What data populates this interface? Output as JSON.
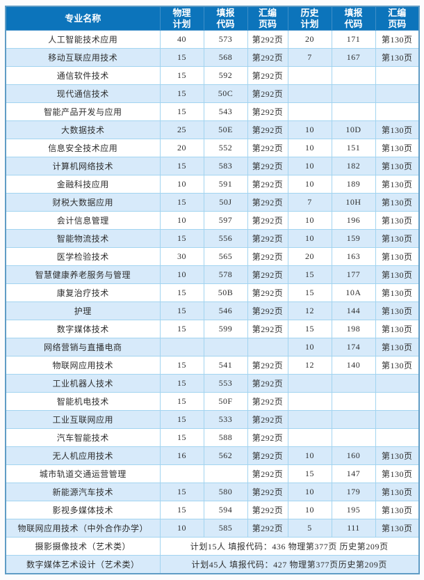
{
  "colors": {
    "header_bg": "#0c74bb",
    "header_text": "#ffffff",
    "header_border": "#3f8fc8",
    "row_alt": "#d7eafa",
    "cell_border": "#a2d4f0",
    "outer_border": "#5f9cc5",
    "text_color": "#2e2e2e"
  },
  "table": {
    "header": {
      "major": "专业名称",
      "cols": [
        {
          "l1": "物理",
          "l2": "计划"
        },
        {
          "l1": "填报",
          "l2": "代码"
        },
        {
          "l1": "汇编",
          "l2": "页码"
        },
        {
          "l1": "历史",
          "l2": "计划"
        },
        {
          "l1": "填报",
          "l2": "代码"
        },
        {
          "l1": "汇编",
          "l2": "页码"
        }
      ]
    },
    "rows": [
      {
        "major": "人工智能技术应用",
        "phy_plan": "40",
        "phy_code": "573",
        "phy_page": "第292页",
        "his_plan": "20",
        "his_code": "171",
        "his_page": "第130页"
      },
      {
        "major": "移动互联应用技术",
        "phy_plan": "15",
        "phy_code": "568",
        "phy_page": "第292页",
        "his_plan": "7",
        "his_code": "167",
        "his_page": "第130页"
      },
      {
        "major": "通信软件技术",
        "phy_plan": "15",
        "phy_code": "592",
        "phy_page": "第292页",
        "his_plan": "",
        "his_code": "",
        "his_page": ""
      },
      {
        "major": "现代通信技术",
        "phy_plan": "15",
        "phy_code": "50C",
        "phy_page": "第292页",
        "his_plan": "",
        "his_code": "",
        "his_page": ""
      },
      {
        "major": "智能产品开发与应用",
        "phy_plan": "15",
        "phy_code": "543",
        "phy_page": "第292页",
        "his_plan": "",
        "his_code": "",
        "his_page": ""
      },
      {
        "major": "大数据技术",
        "phy_plan": "25",
        "phy_code": "50E",
        "phy_page": "第292页",
        "his_plan": "10",
        "his_code": "10D",
        "his_page": "第130页"
      },
      {
        "major": "信息安全技术应用",
        "phy_plan": "20",
        "phy_code": "552",
        "phy_page": "第292页",
        "his_plan": "10",
        "his_code": "151",
        "his_page": "第130页"
      },
      {
        "major": "计算机网络技术",
        "phy_plan": "15",
        "phy_code": "583",
        "phy_page": "第292页",
        "his_plan": "10",
        "his_code": "182",
        "his_page": "第130页"
      },
      {
        "major": "金融科技应用",
        "phy_plan": "10",
        "phy_code": "591",
        "phy_page": "第292页",
        "his_plan": "10",
        "his_code": "189",
        "his_page": "第130页"
      },
      {
        "major": "财税大数据应用",
        "phy_plan": "15",
        "phy_code": "50J",
        "phy_page": "第292页",
        "his_plan": "7",
        "his_code": "10H",
        "his_page": "第130页"
      },
      {
        "major": "会计信息管理",
        "phy_plan": "10",
        "phy_code": "597",
        "phy_page": "第292页",
        "his_plan": "10",
        "his_code": "196",
        "his_page": "第130页"
      },
      {
        "major": "智能物流技术",
        "phy_plan": "15",
        "phy_code": "556",
        "phy_page": "第292页",
        "his_plan": "10",
        "his_code": "159",
        "his_page": "第130页"
      },
      {
        "major": "医学检验技术",
        "phy_plan": "30",
        "phy_code": "565",
        "phy_page": "第292页",
        "his_plan": "20",
        "his_code": "163",
        "his_page": "第130页"
      },
      {
        "major": "智慧健康养老服务与管理",
        "phy_plan": "10",
        "phy_code": "578",
        "phy_page": "第292页",
        "his_plan": "15",
        "his_code": "177",
        "his_page": "第130页"
      },
      {
        "major": "康复治疗技术",
        "phy_plan": "15",
        "phy_code": "50B",
        "phy_page": "第292页",
        "his_plan": "15",
        "his_code": "10A",
        "his_page": "第130页"
      },
      {
        "major": "护理",
        "phy_plan": "15",
        "phy_code": "546",
        "phy_page": "第292页",
        "his_plan": "12",
        "his_code": "144",
        "his_page": "第130页"
      },
      {
        "major": "数字媒体技术",
        "phy_plan": "15",
        "phy_code": "599",
        "phy_page": "第292页",
        "his_plan": "15",
        "his_code": "198",
        "his_page": "第130页"
      },
      {
        "major": "网络营销与直播电商",
        "phy_plan": "",
        "phy_code": "",
        "phy_page": "",
        "his_plan": "10",
        "his_code": "174",
        "his_page": "第130页"
      },
      {
        "major": "物联网应用技术",
        "phy_plan": "15",
        "phy_code": "541",
        "phy_page": "第292页",
        "his_plan": "12",
        "his_code": "140",
        "his_page": "第130页"
      },
      {
        "major": "工业机器人技术",
        "phy_plan": "15",
        "phy_code": "553",
        "phy_page": "第292页",
        "his_plan": "",
        "his_code": "",
        "his_page": ""
      },
      {
        "major": "智能机电技术",
        "phy_plan": "15",
        "phy_code": "50F",
        "phy_page": "第292页",
        "his_plan": "",
        "his_code": "",
        "his_page": ""
      },
      {
        "major": "工业互联网应用",
        "phy_plan": "15",
        "phy_code": "533",
        "phy_page": "第292页",
        "his_plan": "",
        "his_code": "",
        "his_page": ""
      },
      {
        "major": "汽车智能技术",
        "phy_plan": "15",
        "phy_code": "588",
        "phy_page": "第292页",
        "his_plan": "",
        "his_code": "",
        "his_page": ""
      },
      {
        "major": "无人机应用技术",
        "phy_plan": "16",
        "phy_code": "562",
        "phy_page": "第292页",
        "his_plan": "10",
        "his_code": "160",
        "his_page": "第130页"
      },
      {
        "major": "城市轨道交通运营管理",
        "phy_plan": "",
        "phy_code": "",
        "phy_page": "第292页",
        "his_plan": "15",
        "his_code": "147",
        "his_page": "第130页"
      },
      {
        "major": "新能源汽车技术",
        "phy_plan": "15",
        "phy_code": "580",
        "phy_page": "第292页",
        "his_plan": "10",
        "his_code": "179",
        "his_page": "第130页"
      },
      {
        "major": "影视多媒体技术",
        "phy_plan": "15",
        "phy_code": "594",
        "phy_page": "第292页",
        "his_plan": "10",
        "his_code": "195",
        "his_page": "第130页"
      },
      {
        "major": "物联网应用技术（中外合作办学）",
        "phy_plan": "10",
        "phy_code": "585",
        "phy_page": "第292页",
        "his_plan": "5",
        "his_code": "111",
        "his_page": "第130页"
      }
    ],
    "merged_rows": [
      {
        "major": "摄影摄像技术（艺术类）",
        "info": "计划15人 填报代码：436 物理第377页 历史第209页"
      },
      {
        "major": "数字媒体艺术设计（艺术类）",
        "info": "计划45人 填报代码：427 物理第377页历史第209页"
      }
    ]
  }
}
